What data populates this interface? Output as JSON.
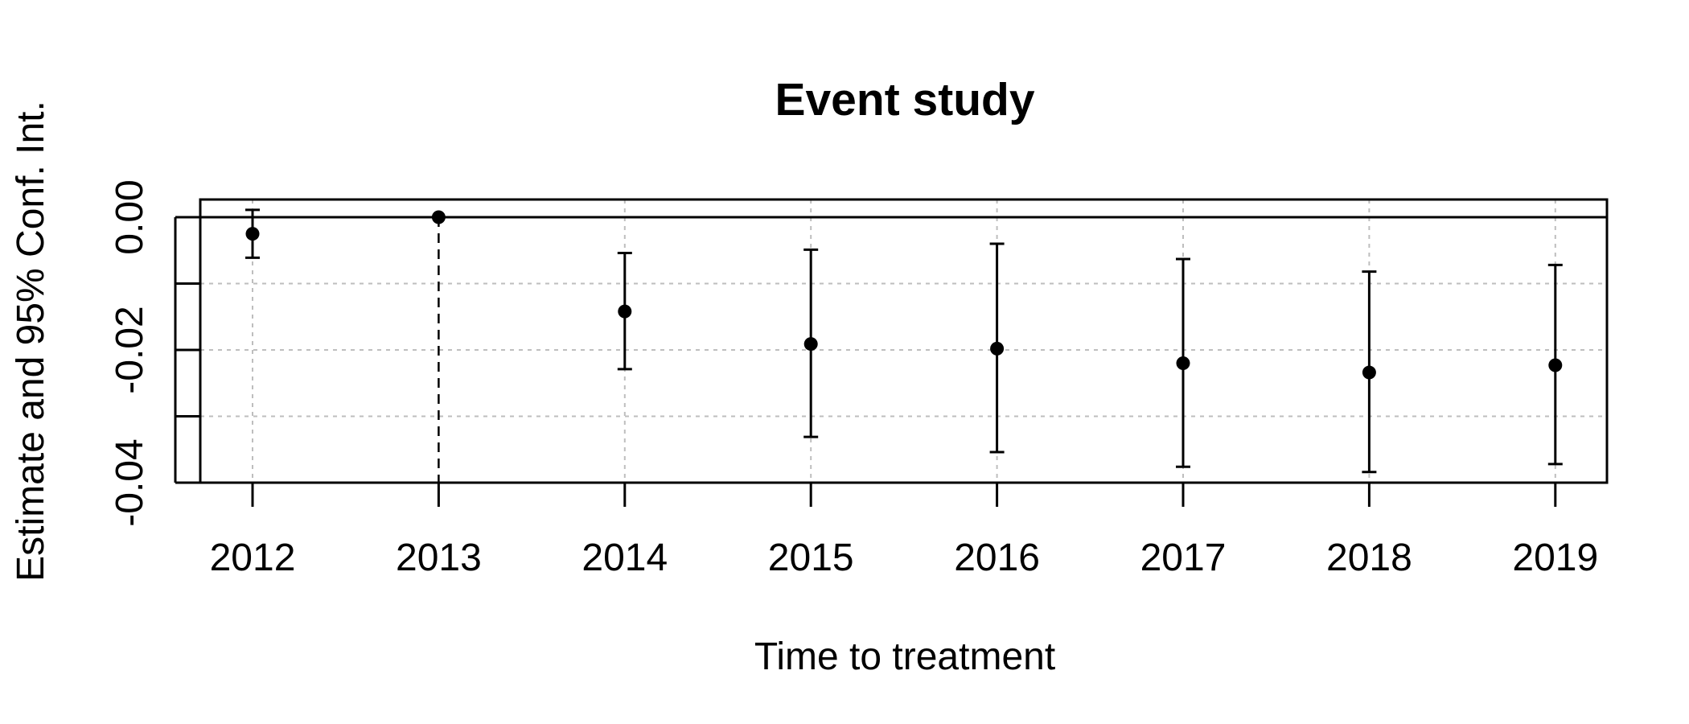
{
  "chart_data": {
    "type": "scatter",
    "title": "Event study",
    "xlabel": "Time to treatment",
    "ylabel": "Estimate and 95% Conf. Int.",
    "categories": [
      "2012",
      "2013",
      "2014",
      "2015",
      "2016",
      "2017",
      "2018",
      "2019"
    ],
    "y_ticks": [
      "0.00",
      "-0.02",
      "-0.04"
    ],
    "ylim": [
      -0.04,
      0.0025
    ],
    "reference_period": "2013",
    "grid": true,
    "series": [
      {
        "estimate": [
          -0.0025,
          0.0,
          -0.0142,
          -0.0191,
          -0.0198,
          -0.022,
          -0.0234,
          -0.0223
        ],
        "ci_low": [
          -0.0061,
          0.0,
          -0.0229,
          -0.0331,
          -0.0354,
          -0.0376,
          -0.0384,
          -0.0372
        ],
        "ci_high": [
          0.0011,
          0.0,
          -0.0054,
          -0.0049,
          -0.004,
          -0.0063,
          -0.0082,
          -0.0072
        ]
      }
    ],
    "colors": {
      "points": "#000000",
      "grid": "#bebebe",
      "frame": "#000000"
    }
  }
}
